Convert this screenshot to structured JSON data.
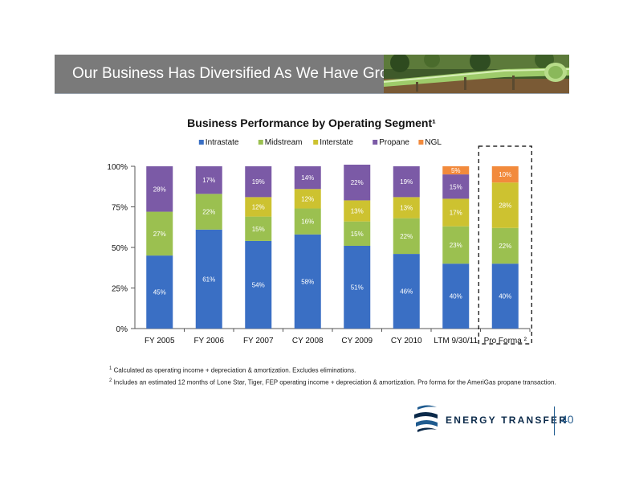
{
  "header": {
    "title": "Our Business Has Diversified As We Have Grown"
  },
  "colors": {
    "Intrastate": "#3a6fc4",
    "Midstream": "#9bc050",
    "Interstate": "#cdc230",
    "Propane": "#7b5aa6",
    "NGL": "#f28a3c",
    "highlight_box": "#000000"
  },
  "chart_data": {
    "type": "bar",
    "stacked": true,
    "title": "Business Performance by Operating Segment¹",
    "xlabel": "",
    "ylabel": "",
    "ylim": [
      0,
      100
    ],
    "yticks": [
      "0%",
      "25%",
      "50%",
      "75%",
      "100%"
    ],
    "legend_position": "top",
    "categories": [
      "FY 2005",
      "FY 2006",
      "FY 2007",
      "CY 2008",
      "CY 2009",
      "CY 2010",
      "LTM 9/30/11",
      "Pro Forma ²"
    ],
    "highlighted_category": "Pro Forma ²",
    "series": [
      {
        "name": "Intrastate",
        "values": [
          45,
          61,
          54,
          58,
          51,
          46,
          40,
          40
        ],
        "labels": [
          "45%",
          "61%",
          "54%",
          "58%",
          "51%",
          "46%",
          "40%",
          "40%"
        ]
      },
      {
        "name": "Midstream",
        "values": [
          27,
          22,
          15,
          16,
          15,
          22,
          23,
          22
        ],
        "labels": [
          "27%",
          "22%",
          "15%",
          "16%",
          "15%",
          "22%",
          "23%",
          "22%"
        ]
      },
      {
        "name": "Interstate",
        "values": [
          0,
          0,
          12,
          12,
          13,
          13,
          17,
          28
        ],
        "labels": [
          "",
          "",
          "12%",
          "12%",
          "13%",
          "13%",
          "17%",
          "28%"
        ]
      },
      {
        "name": "Propane",
        "values": [
          28,
          17,
          19,
          14,
          22,
          19,
          15,
          0
        ],
        "labels": [
          "28%",
          "17%",
          "19%",
          "14%",
          "22%",
          "19%",
          "15%",
          ""
        ]
      },
      {
        "name": "NGL",
        "values": [
          0,
          0,
          0,
          0,
          0,
          0,
          5,
          10
        ],
        "labels": [
          "",
          "",
          "",
          "",
          "",
          "",
          "5%",
          "10%"
        ]
      }
    ]
  },
  "footnotes": [
    {
      "mark": "1",
      "text": "Calculated as operating income + depreciation & amortization. Excludes eliminations."
    },
    {
      "mark": "2",
      "text": "Includes an estimated 12 months of Lone Star, Tiger, FEP operating income + depreciation & amortization. Pro forma for the AmeriGas propane transaction."
    }
  ],
  "footer": {
    "brand": "ENERGY TRANSFER",
    "page_number": "40"
  }
}
